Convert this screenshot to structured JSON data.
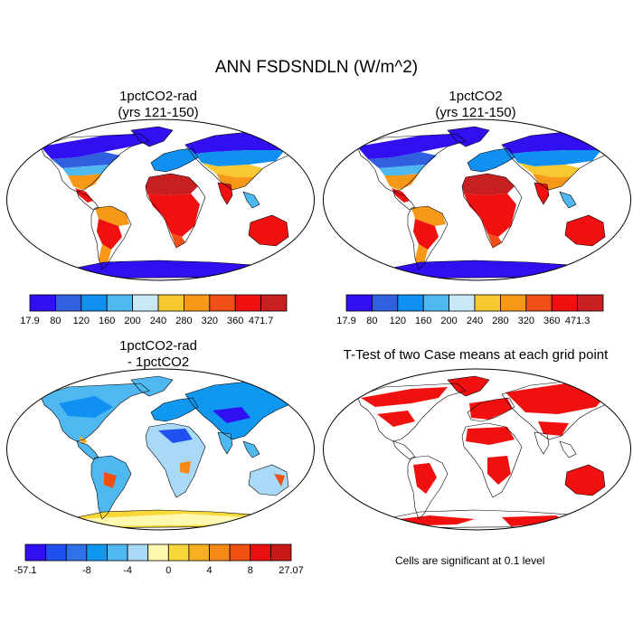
{
  "main_title": "ANN FSDSNDLN (W/m^2)",
  "panels": [
    {
      "id": "p1",
      "title_line1": "1pctCO2-rad",
      "title_line2": "(yrs 121-150)",
      "map": "abs"
    },
    {
      "id": "p2",
      "title_line1": "1pctCO2",
      "title_line2": "(yrs 121-150)",
      "map": "abs"
    },
    {
      "id": "p3",
      "title_line1": "1pctCO2-rad",
      "title_line2": "- 1pctCO2",
      "map": "diff"
    },
    {
      "id": "p4",
      "title_line1": "T-Test of two Case means at each grid point",
      "title_line2": "",
      "map": "ttest"
    }
  ],
  "colorbar1": {
    "labels": [
      "17.9",
      "80",
      "120",
      "160",
      "200",
      "240",
      "280",
      "320",
      "360",
      "471.7"
    ],
    "colors": [
      "#3010f0",
      "#3060e0",
      "#1090f0",
      "#50b8f0",
      "#c8e8f8",
      "#f8c830",
      "#f89818",
      "#f05018",
      "#f01010",
      "#c82020"
    ]
  },
  "colorbar2": {
    "labels": [
      "17.9",
      "80",
      "120",
      "160",
      "200",
      "240",
      "280",
      "320",
      "360",
      "471.3"
    ],
    "colors": [
      "#3010f0",
      "#3060e0",
      "#1090f0",
      "#50b8f0",
      "#c8e8f8",
      "#f8c830",
      "#f89818",
      "#f05018",
      "#f01010",
      "#c82020"
    ]
  },
  "colorbar3": {
    "labels": [
      "-57.1",
      "-8",
      "-4",
      "0",
      "4",
      "8",
      "27.07"
    ],
    "colors": [
      "#3010f0",
      "#2050f0",
      "#3070e8",
      "#1098f0",
      "#50b8f0",
      "#a8daf8",
      "#fff8b0",
      "#f8d838",
      "#f8b020",
      "#f88818",
      "#f05010",
      "#e81010",
      "#c81818"
    ]
  },
  "significance_note": "Cells are significant at 0.1 level",
  "colors": {
    "ttest_red": "#f01010"
  }
}
